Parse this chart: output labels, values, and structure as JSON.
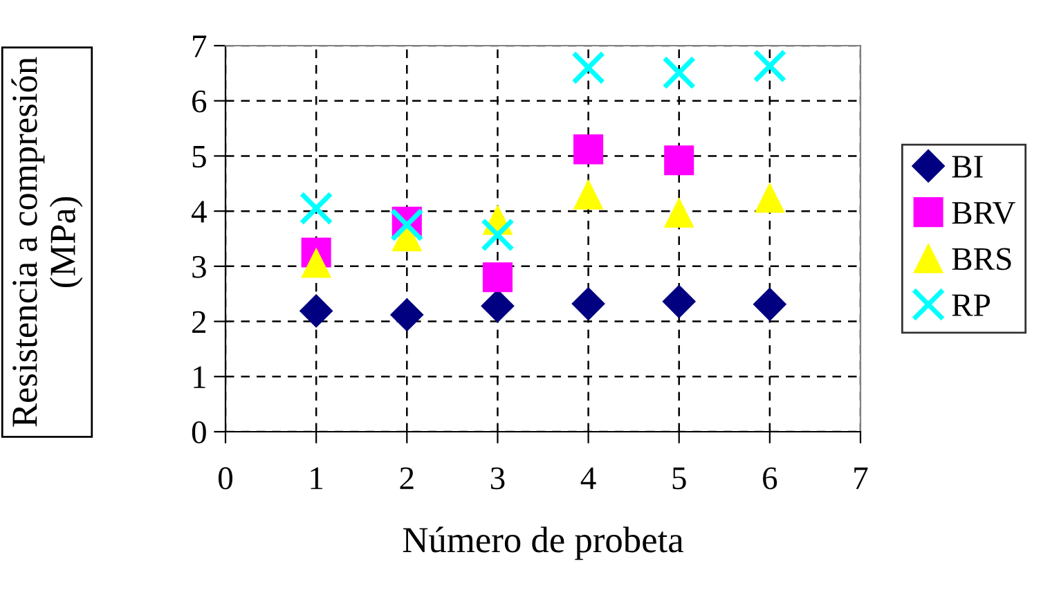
{
  "chart_data": {
    "type": "scatter",
    "xlabel": "Número de probeta",
    "ylabel": "Resistencia a compresión\n(MPa)",
    "x": [
      1,
      2,
      3,
      4,
      5,
      6
    ],
    "series": [
      {
        "name": "BI",
        "color": "#000080",
        "marker": "diamond",
        "values": [
          2.19,
          2.12,
          2.28,
          2.32,
          2.36,
          2.31
        ]
      },
      {
        "name": "BRV",
        "color": "#ff00ff",
        "marker": "square",
        "values": [
          3.25,
          3.81,
          2.8,
          5.12,
          4.92,
          null
        ]
      },
      {
        "name": "BRS",
        "color": "#ffff00",
        "marker": "triangle",
        "values": [
          3.06,
          3.54,
          3.84,
          4.3,
          3.97,
          4.24
        ]
      },
      {
        "name": "RP",
        "color": "#00ffff",
        "marker": "cross",
        "values": [
          4.05,
          3.75,
          3.57,
          6.6,
          6.51,
          6.63
        ]
      }
    ],
    "xlim": [
      0,
      7
    ],
    "ylim": [
      0,
      7
    ],
    "xticks": [
      0,
      1,
      2,
      3,
      4,
      5,
      6,
      7
    ],
    "yticks": [
      0,
      1,
      2,
      3,
      4,
      5,
      6,
      7
    ],
    "grid": true,
    "legend": "right"
  }
}
